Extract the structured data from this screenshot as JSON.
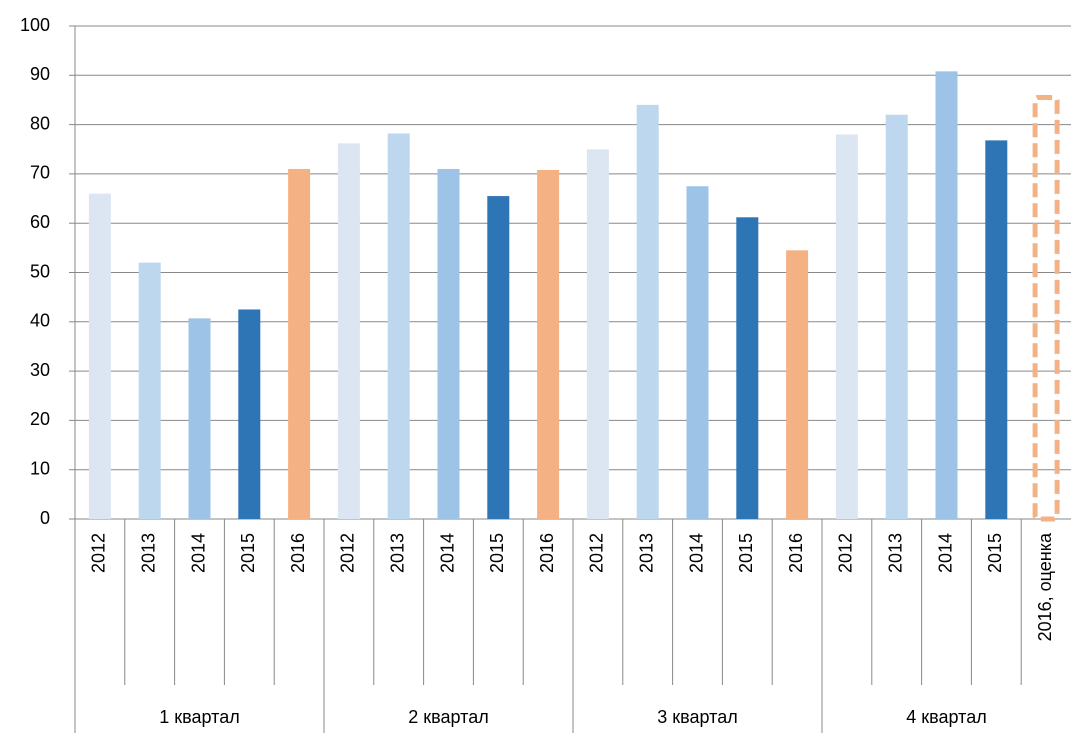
{
  "chart_data": {
    "type": "bar",
    "ylim": [
      0,
      100
    ],
    "yticks": [
      0,
      10,
      20,
      30,
      40,
      50,
      60,
      70,
      80,
      90,
      100
    ],
    "grid": true,
    "groups": [
      {
        "name": "1 квартал",
        "categories": [
          "2012",
          "2013",
          "2014",
          "2015",
          "2016"
        ],
        "values": [
          66,
          52,
          40.7,
          42.5,
          71
        ],
        "colors": [
          "#dce6f2",
          "#bdd7ee",
          "#9dc3e6",
          "#2e75b6",
          "#f4b183"
        ],
        "styles": [
          "solid",
          "solid",
          "solid",
          "solid",
          "solid"
        ]
      },
      {
        "name": "2 квартал",
        "categories": [
          "2012",
          "2013",
          "2014",
          "2015",
          "2016"
        ],
        "values": [
          76.2,
          78.2,
          71,
          65.5,
          70.8
        ],
        "colors": [
          "#dce6f2",
          "#bdd7ee",
          "#9dc3e6",
          "#2e75b6",
          "#f4b183"
        ],
        "styles": [
          "solid",
          "solid",
          "solid",
          "solid",
          "solid"
        ]
      },
      {
        "name": "3 квартал",
        "categories": [
          "2012",
          "2013",
          "2014",
          "2015",
          "2016"
        ],
        "values": [
          75,
          84,
          67.5,
          61.2,
          54.5
        ],
        "colors": [
          "#dce6f2",
          "#bdd7ee",
          "#9dc3e6",
          "#2e75b6",
          "#f4b183"
        ],
        "styles": [
          "solid",
          "solid",
          "solid",
          "solid",
          "solid"
        ]
      },
      {
        "name": "4 квартал",
        "categories": [
          "2012",
          "2013",
          "2014",
          "2015",
          "2016, оценка"
        ],
        "values": [
          78,
          82,
          90.8,
          76.8,
          85.5
        ],
        "colors": [
          "#dce6f2",
          "#bdd7ee",
          "#9dc3e6",
          "#2e75b6",
          "#f4b183"
        ],
        "styles": [
          "solid",
          "solid",
          "solid",
          "solid",
          "dashed"
        ]
      }
    ]
  }
}
